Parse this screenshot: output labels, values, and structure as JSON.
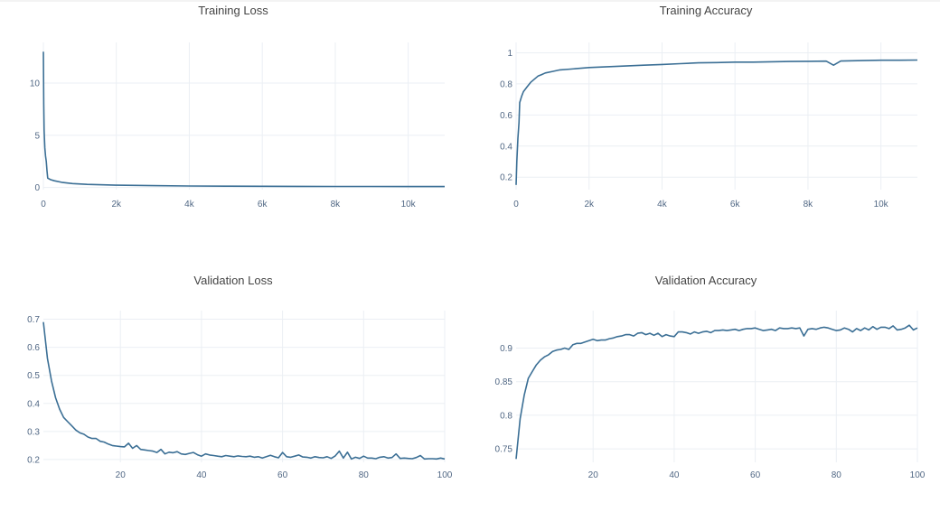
{
  "chart_data": [
    {
      "type": "line",
      "title": "Training Loss",
      "xlim": [
        0,
        11000
      ],
      "ylim": [
        -0.2,
        13.2
      ],
      "xticks": [
        0,
        2000,
        4000,
        6000,
        8000,
        10000
      ],
      "xtick_labels": [
        "0",
        "2k",
        "4k",
        "6k",
        "8k",
        "10k"
      ],
      "yticks": [
        0,
        5,
        10
      ],
      "ytick_labels": [
        "0",
        "5",
        "10"
      ],
      "grid": true,
      "series": [
        {
          "color": "#3b6f95",
          "x": [
            0,
            10,
            20,
            40,
            60,
            80,
            100,
            120,
            200,
            300,
            500,
            800,
            1200,
            2000,
            3000,
            4000,
            5000,
            6000,
            7000,
            8000,
            9000,
            10000,
            11000
          ],
          "y": [
            13.0,
            8.0,
            5.5,
            3.8,
            3.0,
            2.5,
            1.6,
            0.9,
            0.75,
            0.65,
            0.5,
            0.38,
            0.3,
            0.22,
            0.18,
            0.15,
            0.13,
            0.12,
            0.11,
            0.1,
            0.1,
            0.09,
            0.09
          ]
        }
      ]
    },
    {
      "type": "line",
      "title": "Training Accuracy",
      "xlim": [
        0,
        11000
      ],
      "ylim": [
        0.12,
        1.02
      ],
      "xticks": [
        0,
        2000,
        4000,
        6000,
        8000,
        10000
      ],
      "xtick_labels": [
        "0",
        "2k",
        "4k",
        "6k",
        "8k",
        "10k"
      ],
      "yticks": [
        0.2,
        0.4,
        0.6,
        0.8,
        1
      ],
      "ytick_labels": [
        "0.2",
        "0.4",
        "0.6",
        "0.8",
        "1"
      ],
      "grid": true,
      "series": [
        {
          "color": "#3b6f95",
          "x": [
            0,
            20,
            50,
            80,
            100,
            150,
            200,
            300,
            400,
            500,
            600,
            700,
            800,
            1000,
            1200,
            1500,
            2000,
            2500,
            3000,
            3500,
            4000,
            4500,
            5000,
            5500,
            6000,
            6500,
            7000,
            7500,
            8000,
            8500,
            8700,
            8900,
            9500,
            10000,
            10500,
            11000
          ],
          "y": [
            0.15,
            0.3,
            0.45,
            0.55,
            0.68,
            0.72,
            0.75,
            0.78,
            0.81,
            0.83,
            0.85,
            0.86,
            0.87,
            0.88,
            0.89,
            0.895,
            0.905,
            0.91,
            0.915,
            0.92,
            0.925,
            0.93,
            0.935,
            0.937,
            0.94,
            0.94,
            0.942,
            0.944,
            0.945,
            0.946,
            0.92,
            0.947,
            0.95,
            0.952,
            0.952,
            0.953
          ]
        }
      ]
    },
    {
      "type": "line",
      "title": "Validation Loss",
      "xlim": [
        1,
        100
      ],
      "ylim": [
        0.19,
        0.705
      ],
      "xticks": [
        20,
        40,
        60,
        80,
        100
      ],
      "xtick_labels": [
        "20",
        "40",
        "60",
        "80",
        "100"
      ],
      "yticks": [
        0.2,
        0.3,
        0.4,
        0.5,
        0.6,
        0.7
      ],
      "ytick_labels": [
        "0.2",
        "0.3",
        "0.4",
        "0.5",
        "0.6",
        "0.7"
      ],
      "grid": true,
      "series": [
        {
          "color": "#3b6f95",
          "x": [
            1,
            2,
            3,
            4,
            5,
            6,
            7,
            8,
            9,
            10,
            11,
            12,
            13,
            14,
            15,
            16,
            17,
            18,
            19,
            20,
            21,
            22,
            23,
            24,
            25,
            26,
            27,
            28,
            29,
            30,
            31,
            32,
            33,
            34,
            35,
            36,
            37,
            38,
            39,
            40,
            41,
            42,
            43,
            44,
            45,
            46,
            47,
            48,
            49,
            50,
            51,
            52,
            53,
            54,
            55,
            56,
            57,
            58,
            59,
            60,
            61,
            62,
            63,
            64,
            65,
            66,
            67,
            68,
            69,
            70,
            71,
            72,
            73,
            74,
            75,
            76,
            77,
            78,
            79,
            80,
            81,
            82,
            83,
            84,
            85,
            86,
            87,
            88,
            89,
            90,
            91,
            92,
            93,
            94,
            95,
            96,
            97,
            98,
            99,
            100
          ],
          "y": [
            0.69,
            0.56,
            0.48,
            0.42,
            0.38,
            0.35,
            0.335,
            0.32,
            0.305,
            0.295,
            0.29,
            0.28,
            0.275,
            0.275,
            0.265,
            0.262,
            0.255,
            0.25,
            0.248,
            0.246,
            0.245,
            0.258,
            0.24,
            0.25,
            0.236,
            0.234,
            0.232,
            0.23,
            0.225,
            0.236,
            0.22,
            0.226,
            0.224,
            0.228,
            0.22,
            0.218,
            0.222,
            0.225,
            0.217,
            0.212,
            0.22,
            0.216,
            0.214,
            0.212,
            0.21,
            0.214,
            0.212,
            0.21,
            0.213,
            0.211,
            0.21,
            0.212,
            0.208,
            0.21,
            0.205,
            0.21,
            0.215,
            0.21,
            0.206,
            0.225,
            0.21,
            0.208,
            0.212,
            0.216,
            0.209,
            0.208,
            0.205,
            0.21,
            0.207,
            0.206,
            0.21,
            0.204,
            0.213,
            0.23,
            0.205,
            0.226,
            0.202,
            0.208,
            0.204,
            0.212,
            0.205,
            0.205,
            0.203,
            0.208,
            0.21,
            0.205,
            0.207,
            0.22,
            0.204,
            0.205,
            0.204,
            0.203,
            0.207,
            0.214,
            0.202,
            0.203,
            0.203,
            0.202,
            0.205,
            0.202
          ]
        }
      ]
    },
    {
      "type": "line",
      "title": "Validation Accuracy",
      "xlim": [
        1,
        100
      ],
      "ylim": [
        0.73,
        0.945
      ],
      "xticks": [
        20,
        40,
        60,
        80,
        100
      ],
      "xtick_labels": [
        "20",
        "40",
        "60",
        "80",
        "100"
      ],
      "yticks": [
        0.75,
        0.8,
        0.85,
        0.9
      ],
      "ytick_labels": [
        "0.75",
        "0.8",
        "0.85",
        "0.9"
      ],
      "grid": true,
      "series": [
        {
          "color": "#3b6f95",
          "x": [
            1,
            2,
            3,
            4,
            5,
            6,
            7,
            8,
            9,
            10,
            11,
            12,
            13,
            14,
            15,
            16,
            17,
            18,
            19,
            20,
            21,
            22,
            23,
            24,
            25,
            26,
            27,
            28,
            29,
            30,
            31,
            32,
            33,
            34,
            35,
            36,
            37,
            38,
            39,
            40,
            41,
            42,
            43,
            44,
            45,
            46,
            47,
            48,
            49,
            50,
            51,
            52,
            53,
            54,
            55,
            56,
            57,
            58,
            59,
            60,
            61,
            62,
            63,
            64,
            65,
            66,
            67,
            68,
            69,
            70,
            71,
            72,
            73,
            74,
            75,
            76,
            77,
            78,
            79,
            80,
            81,
            82,
            83,
            84,
            85,
            86,
            87,
            88,
            89,
            90,
            91,
            92,
            93,
            94,
            95,
            96,
            97,
            98,
            99,
            100
          ],
          "y": [
            0.735,
            0.795,
            0.83,
            0.855,
            0.865,
            0.875,
            0.882,
            0.887,
            0.89,
            0.895,
            0.897,
            0.898,
            0.9,
            0.898,
            0.905,
            0.907,
            0.907,
            0.909,
            0.911,
            0.913,
            0.911,
            0.912,
            0.912,
            0.914,
            0.915,
            0.917,
            0.918,
            0.92,
            0.92,
            0.918,
            0.922,
            0.923,
            0.92,
            0.922,
            0.919,
            0.922,
            0.917,
            0.92,
            0.918,
            0.917,
            0.924,
            0.924,
            0.923,
            0.921,
            0.924,
            0.922,
            0.924,
            0.925,
            0.923,
            0.926,
            0.926,
            0.927,
            0.926,
            0.927,
            0.928,
            0.926,
            0.928,
            0.929,
            0.929,
            0.93,
            0.928,
            0.926,
            0.927,
            0.928,
            0.926,
            0.93,
            0.929,
            0.929,
            0.93,
            0.929,
            0.93,
            0.918,
            0.928,
            0.929,
            0.928,
            0.93,
            0.931,
            0.93,
            0.928,
            0.926,
            0.927,
            0.93,
            0.928,
            0.924,
            0.929,
            0.926,
            0.93,
            0.927,
            0.932,
            0.928,
            0.931,
            0.931,
            0.929,
            0.933,
            0.927,
            0.928,
            0.93,
            0.934,
            0.927,
            0.93
          ]
        }
      ]
    }
  ]
}
